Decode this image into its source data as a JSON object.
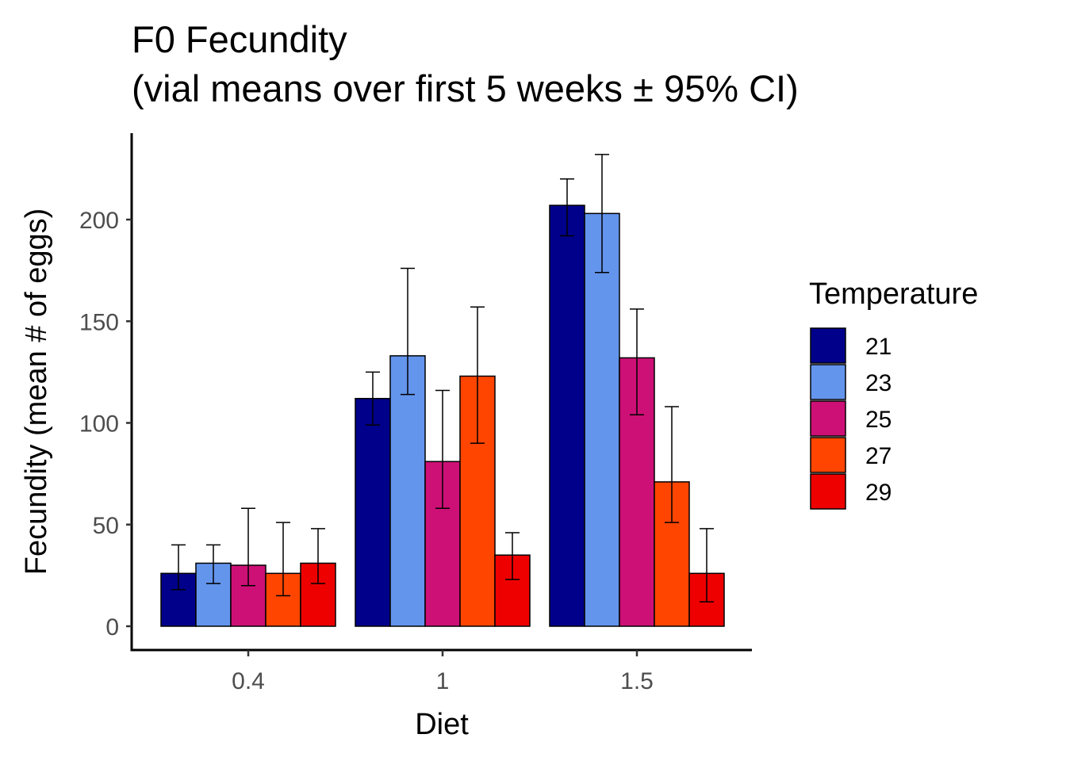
{
  "chart_data": {
    "type": "bar",
    "title_line1": "F0 Fecundity",
    "title_line2": "(vial means over first 5 weeks ± 95% CI)",
    "xlabel": "Diet",
    "ylabel": "Fecundity (mean # of eggs)",
    "categories": [
      "0.4",
      "1",
      "1.5"
    ],
    "yticks": [
      "0",
      "50",
      "100",
      "150",
      "200"
    ],
    "ylim": [
      -10,
      245
    ],
    "legend": {
      "title": "Temperature",
      "position": "right"
    },
    "grid": false,
    "series": [
      {
        "name": "21",
        "color": "#00008B",
        "values": [
          26,
          112,
          207
        ],
        "ci_low": [
          18,
          99,
          192
        ],
        "ci_high": [
          40,
          125,
          220
        ]
      },
      {
        "name": "23",
        "color": "#6495ED",
        "values": [
          31,
          133,
          203
        ],
        "ci_low": [
          21,
          114,
          174
        ],
        "ci_high": [
          40,
          176,
          232
        ]
      },
      {
        "name": "25",
        "color": "#CD1076",
        "values": [
          30,
          81,
          132
        ],
        "ci_low": [
          20,
          58,
          104
        ],
        "ci_high": [
          58,
          116,
          156
        ]
      },
      {
        "name": "27",
        "color": "#FF4500",
        "values": [
          26,
          123,
          71
        ],
        "ci_low": [
          15,
          90,
          51
        ],
        "ci_high": [
          51,
          157,
          108
        ]
      },
      {
        "name": "29",
        "color": "#EE0000",
        "values": [
          31,
          35,
          26
        ],
        "ci_low": [
          21,
          23,
          12
        ],
        "ci_high": [
          48,
          46,
          48
        ]
      }
    ]
  }
}
